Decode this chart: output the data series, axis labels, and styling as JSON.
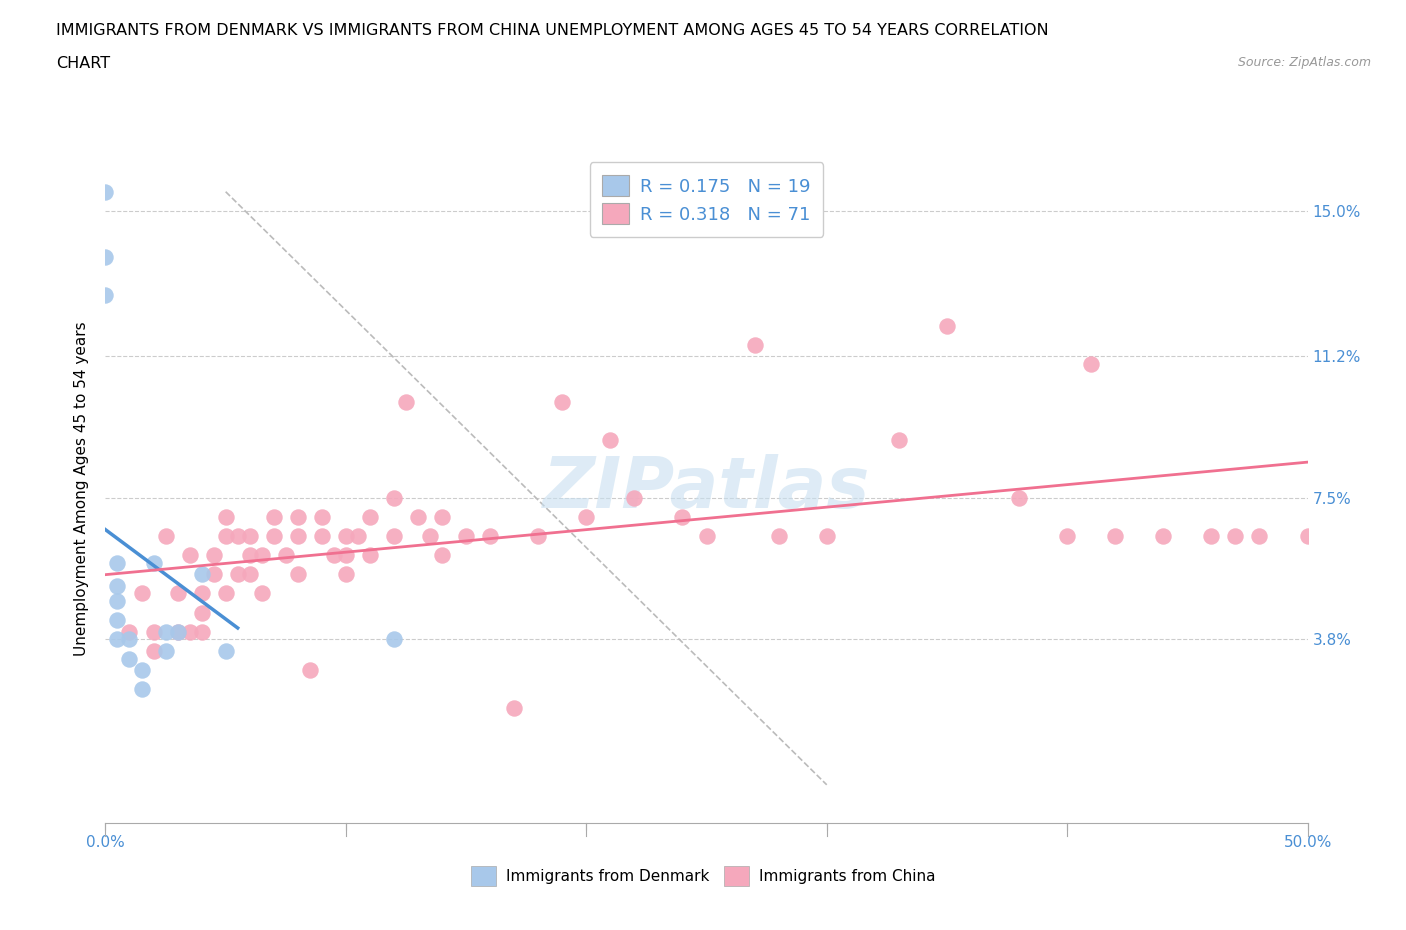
{
  "title_line1": "IMMIGRANTS FROM DENMARK VS IMMIGRANTS FROM CHINA UNEMPLOYMENT AMONG AGES 45 TO 54 YEARS CORRELATION",
  "title_line2": "CHART",
  "source_text": "Source: ZipAtlas.com",
  "ylabel": "Unemployment Among Ages 45 to 54 years",
  "xlim": [
    0.0,
    0.5
  ],
  "ylim": [
    -0.01,
    0.165
  ],
  "xtick_positions": [
    0.0,
    0.1,
    0.2,
    0.3,
    0.4,
    0.5
  ],
  "xticklabels": [
    "0.0%",
    "",
    "",
    "",
    "",
    "50.0%"
  ],
  "ytick_positions": [
    0.0,
    0.038,
    0.075,
    0.112,
    0.15
  ],
  "yticklabels_right": [
    "",
    "3.8%",
    "7.5%",
    "11.2%",
    "15.0%"
  ],
  "denmark_R": "0.175",
  "denmark_N": "19",
  "china_R": "0.318",
  "china_N": "71",
  "denmark_color": "#a8c8ea",
  "china_color": "#f5a8bc",
  "denmark_line_color": "#4a8fd4",
  "china_line_color": "#f07090",
  "watermark_color": "#c8dff0",
  "denmark_scatter_x": [
    0.0,
    0.0,
    0.0,
    0.005,
    0.005,
    0.005,
    0.005,
    0.005,
    0.01,
    0.01,
    0.015,
    0.015,
    0.02,
    0.025,
    0.025,
    0.03,
    0.04,
    0.05,
    0.12
  ],
  "denmark_scatter_y": [
    0.155,
    0.138,
    0.128,
    0.058,
    0.052,
    0.048,
    0.043,
    0.038,
    0.038,
    0.033,
    0.03,
    0.025,
    0.058,
    0.04,
    0.035,
    0.04,
    0.055,
    0.035,
    0.038
  ],
  "china_scatter_x": [
    0.01,
    0.015,
    0.02,
    0.02,
    0.025,
    0.03,
    0.03,
    0.035,
    0.035,
    0.04,
    0.04,
    0.04,
    0.045,
    0.045,
    0.05,
    0.05,
    0.05,
    0.055,
    0.055,
    0.06,
    0.06,
    0.06,
    0.065,
    0.065,
    0.07,
    0.07,
    0.075,
    0.08,
    0.08,
    0.08,
    0.085,
    0.09,
    0.09,
    0.095,
    0.1,
    0.1,
    0.1,
    0.105,
    0.11,
    0.11,
    0.12,
    0.12,
    0.125,
    0.13,
    0.135,
    0.14,
    0.14,
    0.15,
    0.16,
    0.17,
    0.18,
    0.19,
    0.2,
    0.21,
    0.22,
    0.24,
    0.25,
    0.27,
    0.28,
    0.3,
    0.33,
    0.35,
    0.38,
    0.4,
    0.41,
    0.42,
    0.44,
    0.46,
    0.47,
    0.48,
    0.5
  ],
  "china_scatter_y": [
    0.04,
    0.05,
    0.04,
    0.035,
    0.065,
    0.05,
    0.04,
    0.06,
    0.04,
    0.05,
    0.045,
    0.04,
    0.06,
    0.055,
    0.07,
    0.065,
    0.05,
    0.065,
    0.055,
    0.065,
    0.06,
    0.055,
    0.06,
    0.05,
    0.07,
    0.065,
    0.06,
    0.07,
    0.065,
    0.055,
    0.03,
    0.07,
    0.065,
    0.06,
    0.065,
    0.06,
    0.055,
    0.065,
    0.07,
    0.06,
    0.075,
    0.065,
    0.1,
    0.07,
    0.065,
    0.07,
    0.06,
    0.065,
    0.065,
    0.02,
    0.065,
    0.1,
    0.07,
    0.09,
    0.075,
    0.07,
    0.065,
    0.115,
    0.065,
    0.065,
    0.09,
    0.12,
    0.075,
    0.065,
    0.11,
    0.065,
    0.065,
    0.065,
    0.065,
    0.065,
    0.065
  ],
  "legend_label_color": "#4a8fd4",
  "tick_label_color": "#4a8fd4",
  "bottom_legend_dk": "Immigrants from Denmark",
  "bottom_legend_cn": "Immigrants from China"
}
